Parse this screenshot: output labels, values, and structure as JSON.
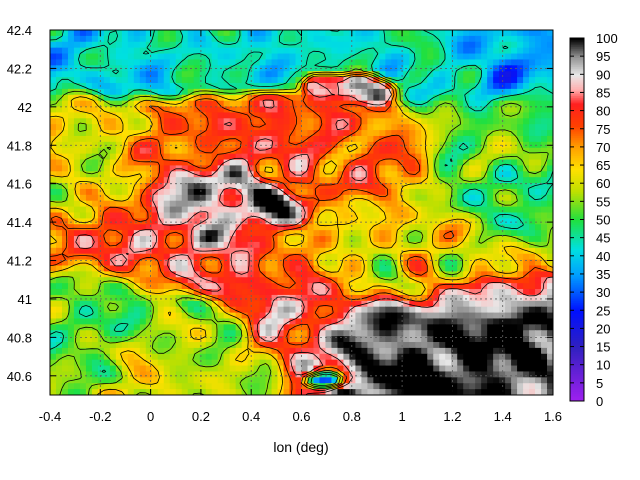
{
  "chart_data": {
    "type": "heatmap",
    "title": "",
    "xlabel": "lon (deg)",
    "ylabel": "",
    "xlim": [
      -0.4,
      1.6
    ],
    "ylim": [
      40.5,
      42.4
    ],
    "x_ticks": [
      -0.4,
      -0.2,
      0,
      0.2,
      0.4,
      0.6,
      0.8,
      1,
      1.2,
      1.4,
      1.6
    ],
    "x_tick_labels": [
      "-0.4",
      "-0.2",
      "0",
      "0.2",
      "0.4",
      "0.6",
      "0.8",
      "1",
      "1.2",
      "1.4",
      "1.6"
    ],
    "y_ticks": [
      40.6,
      40.8,
      41,
      41.2,
      41.4,
      41.6,
      41.8,
      42,
      42.2,
      42.4
    ],
    "y_tick_labels": [
      "40.6",
      "40.8",
      "41",
      "41.2",
      "41.4",
      "41.6",
      "41.8",
      "42",
      "42.2",
      "42.4"
    ],
    "grid": true,
    "contours": true,
    "colorbar": {
      "min": 0,
      "max": 100,
      "ticks": [
        0,
        5,
        10,
        15,
        20,
        25,
        30,
        35,
        40,
        45,
        50,
        55,
        60,
        65,
        70,
        75,
        80,
        85,
        90,
        95,
        100
      ],
      "tick_labels": [
        "0",
        "5",
        "10",
        "15",
        "20",
        "25",
        "30",
        "35",
        "40",
        "45",
        "50",
        "55",
        "60",
        "65",
        "70",
        "75",
        "80",
        "85",
        "90",
        "95",
        "100"
      ],
      "stops": [
        {
          "v": 0,
          "color": "#a020f0"
        },
        {
          "v": 15,
          "color": "#3020c0"
        },
        {
          "v": 25,
          "color": "#0010ff"
        },
        {
          "v": 35,
          "color": "#00a0ff"
        },
        {
          "v": 42,
          "color": "#00e0e0"
        },
        {
          "v": 50,
          "color": "#20e040"
        },
        {
          "v": 58,
          "color": "#c0e000"
        },
        {
          "v": 64,
          "color": "#ffe000"
        },
        {
          "v": 70,
          "color": "#ffa000"
        },
        {
          "v": 76,
          "color": "#ff4000"
        },
        {
          "v": 82,
          "color": "#ff2020"
        },
        {
          "v": 86,
          "color": "#ffb0b0"
        },
        {
          "v": 90,
          "color": "#e8e8e8"
        },
        {
          "v": 95,
          "color": "#909090"
        },
        {
          "v": 100,
          "color": "#000000"
        }
      ]
    },
    "features": [
      {
        "lon": -0.2,
        "lat": 42.35,
        "value": 40,
        "sx": 0.25,
        "sy": 0.12
      },
      {
        "lon": 0.4,
        "lat": 42.35,
        "value": 45,
        "sx": 0.2,
        "sy": 0.1
      },
      {
        "lon": 1.1,
        "lat": 42.32,
        "value": 42,
        "sx": 0.25,
        "sy": 0.12
      },
      {
        "lon": 1.5,
        "lat": 42.25,
        "value": 38,
        "sx": 0.2,
        "sy": 0.12
      },
      {
        "lon": -0.3,
        "lat": 41.6,
        "value": 62,
        "sx": 0.15,
        "sy": 0.2
      },
      {
        "lon": 0.0,
        "lat": 41.3,
        "value": 80,
        "sx": 0.35,
        "sy": 0.12
      },
      {
        "lon": 0.3,
        "lat": 41.55,
        "value": 95,
        "sx": 0.14,
        "sy": 0.12
      },
      {
        "lon": 0.5,
        "lat": 41.45,
        "value": 98,
        "sx": 0.09,
        "sy": 0.06
      },
      {
        "lon": 0.25,
        "lat": 41.3,
        "value": 92,
        "sx": 0.14,
        "sy": 0.06
      },
      {
        "lon": 0.85,
        "lat": 42.1,
        "value": 95,
        "sx": 0.06,
        "sy": 0.04
      },
      {
        "lon": 0.7,
        "lat": 42.12,
        "value": 88,
        "sx": 0.04,
        "sy": 0.03
      },
      {
        "lon": 0.6,
        "lat": 41.75,
        "value": 76,
        "sx": 0.4,
        "sy": 0.12
      },
      {
        "lon": 1.4,
        "lat": 41.7,
        "value": 50,
        "sx": 0.2,
        "sy": 0.2
      },
      {
        "lon": 1.0,
        "lat": 41.25,
        "value": 62,
        "sx": 0.3,
        "sy": 0.15
      },
      {
        "lon": -0.3,
        "lat": 40.9,
        "value": 52,
        "sx": 0.15,
        "sy": 0.18
      },
      {
        "lon": 0.1,
        "lat": 40.65,
        "value": 58,
        "sx": 0.25,
        "sy": 0.15
      },
      {
        "lon": 0.6,
        "lat": 40.95,
        "value": 80,
        "sx": 0.12,
        "sy": 0.18
      },
      {
        "lon": 1.2,
        "lat": 40.7,
        "value": 100,
        "sx": 0.35,
        "sy": 0.2
      },
      {
        "lon": 1.5,
        "lat": 40.6,
        "value": 100,
        "sx": 0.2,
        "sy": 0.12
      },
      {
        "lon": 0.9,
        "lat": 40.65,
        "value": 92,
        "sx": 0.15,
        "sy": 0.12
      },
      {
        "lon": 1.45,
        "lat": 41.0,
        "value": 86,
        "sx": 0.2,
        "sy": 0.07
      },
      {
        "lon": 0.7,
        "lat": 40.58,
        "value": 8,
        "sx": 0.05,
        "sy": 0.03
      }
    ]
  }
}
